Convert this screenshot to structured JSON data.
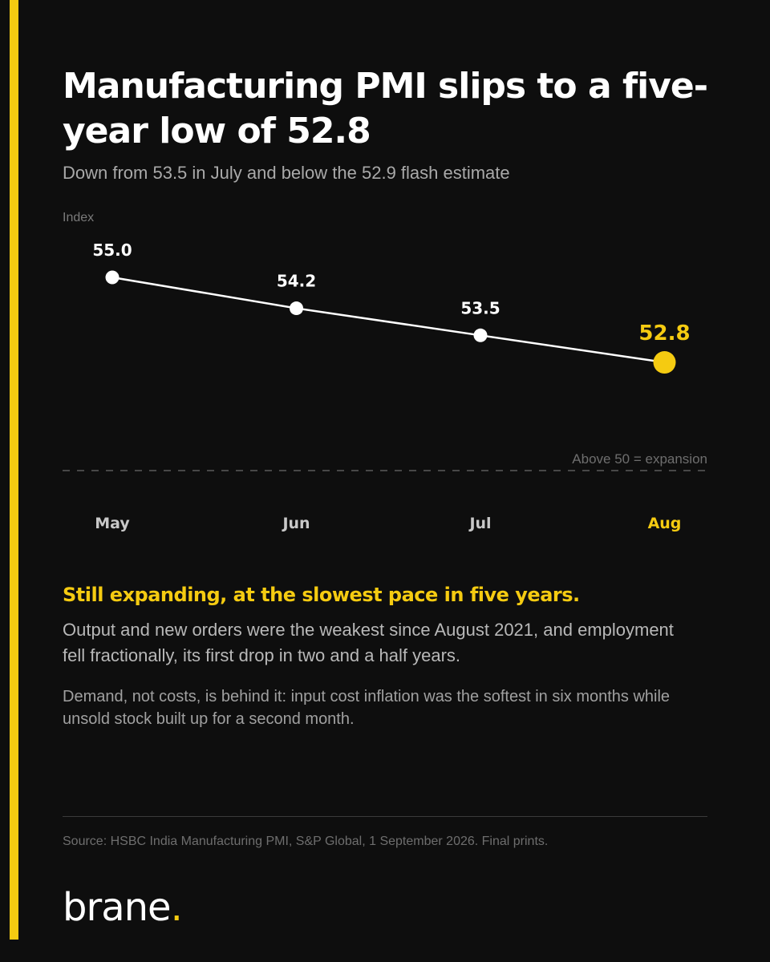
{
  "title": "Manufacturing PMI slips to a five-year low of 52.8",
  "subtitle": "Down from 53.5 in July and below the 52.9 flash estimate",
  "y_unit": "Index",
  "colors": {
    "background": "#0e0e0e",
    "accent": "#f5cb11",
    "line": "#ffffff",
    "muted_text": "#a9a9a9"
  },
  "chart_data": {
    "type": "line",
    "categories": [
      "May",
      "Jun",
      "Jul",
      "Aug"
    ],
    "values": [
      55.0,
      54.2,
      53.5,
      52.8
    ],
    "value_labels": [
      "55.0",
      "54.2",
      "53.5",
      "52.8"
    ],
    "highlight_index": 3,
    "ylabel": "Index",
    "ylim": [
      50,
      55
    ],
    "reference_line": {
      "value": 50,
      "label": "Above 50 = expansion",
      "style": "dashed"
    },
    "grid": false,
    "legend": "none"
  },
  "headline": "Still expanding, at the slowest pace in five years.",
  "paragraphs": [
    "Output and new orders were the weakest since August 2021, and employment fell fractionally, its first drop in two and a half years.",
    "Demand, not costs, is behind it: input cost inflation was the softest in six months while unsold stock built up for a second month."
  ],
  "source": "Source: HSBC India Manufacturing PMI, S&P Global, 1 September 2026. Final prints.",
  "brand": {
    "name": "brane",
    "dot": "."
  }
}
